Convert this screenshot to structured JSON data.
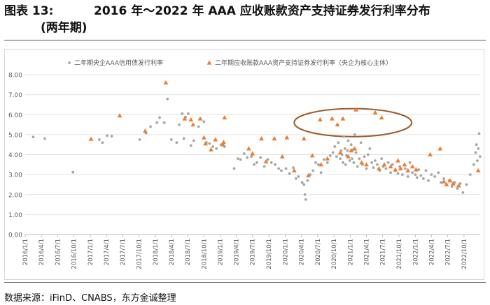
{
  "header": {
    "figure_label": "图表 13:",
    "title_line1": "2016 年～2022 年 AAA 应收账款资产支持证券发行利率分布",
    "title_line2": "(两年期)"
  },
  "footer": {
    "source": "数据来源：iFinD、CNABS，东方金诚整理"
  },
  "chart_data": {
    "type": "scatter",
    "legend_position": "top-center",
    "grid": "horizontal",
    "ylim": [
      0,
      8
    ],
    "yticks": [
      "0.00",
      "1.00",
      "2.00",
      "3.00",
      "4.00",
      "5.00",
      "6.00",
      "7.00",
      "8.00"
    ],
    "xlim": [
      "2016-01-01",
      "2022-12-31"
    ],
    "xticks": [
      "2016/1/1",
      "2016/4/1",
      "2016/7/1",
      "2016/10/1",
      "2017/1/1",
      "2017/4/1",
      "2017/7/1",
      "2017/10/1",
      "2018/1/1",
      "2018/4/1",
      "2018/7/1",
      "2018/10/1",
      "2019/1/1",
      "2019/4/1",
      "2019/7/1",
      "2019/10/1",
      "2020/1/1",
      "2020/4/1",
      "2020/7/1",
      "2020/10/1",
      "2021/1/1",
      "2021/4/1",
      "2021/7/1",
      "2021/10/1",
      "2022/1/1",
      "2022/4/1",
      "2022/7/1",
      "2022/10/1"
    ],
    "annotation": {
      "shape": "ellipse",
      "center": [
        "2021-01-15",
        5.6
      ],
      "radius_days": 330,
      "radius_y": 0.7,
      "color": "#9C5A2A"
    },
    "series": [
      {
        "name": "二年期央企AAA信用债发行利率",
        "marker": "circle",
        "color": "#A6A6A6",
        "points": [
          [
            "2016-02-15",
            4.88
          ],
          [
            "2016-04-20",
            4.8
          ],
          [
            "2016-09-25",
            3.12
          ],
          [
            "2017-02-20",
            4.75
          ],
          [
            "2017-03-10",
            4.6
          ],
          [
            "2017-04-05",
            4.95
          ],
          [
            "2017-05-01",
            4.92
          ],
          [
            "2017-10-05",
            4.75
          ],
          [
            "2017-11-10",
            5.08
          ],
          [
            "2017-12-05",
            5.4
          ],
          [
            "2018-01-10",
            5.6
          ],
          [
            "2018-01-25",
            5.85
          ],
          [
            "2018-02-20",
            5.6
          ],
          [
            "2018-03-10",
            6.78
          ],
          [
            "2018-04-01",
            4.75
          ],
          [
            "2018-05-01",
            4.6
          ],
          [
            "2018-05-15",
            5.5
          ],
          [
            "2018-06-01",
            6.05
          ],
          [
            "2018-06-10",
            4.8
          ],
          [
            "2018-06-20",
            5.88
          ],
          [
            "2018-07-05",
            6.05
          ],
          [
            "2018-07-20",
            4.45
          ],
          [
            "2018-08-05",
            4.7
          ],
          [
            "2018-09-01",
            5.4
          ],
          [
            "2018-10-01",
            5.65
          ],
          [
            "2018-10-15",
            4.6
          ],
          [
            "2018-11-01",
            4.55
          ],
          [
            "2018-11-20",
            4.4
          ],
          [
            "2018-12-10",
            4.3
          ],
          [
            "2019-01-05",
            4.5
          ],
          [
            "2019-01-25",
            4.4
          ],
          [
            "2019-03-20",
            3.3
          ],
          [
            "2019-04-10",
            3.8
          ],
          [
            "2019-04-25",
            3.75
          ],
          [
            "2019-05-15",
            4.05
          ],
          [
            "2019-06-01",
            3.85
          ],
          [
            "2019-06-25",
            3.9
          ],
          [
            "2019-07-10",
            3.5
          ],
          [
            "2019-07-25",
            3.6
          ],
          [
            "2019-08-15",
            3.85
          ],
          [
            "2019-09-05",
            3.4
          ],
          [
            "2019-09-25",
            3.75
          ],
          [
            "2019-10-15",
            3.6
          ],
          [
            "2019-11-05",
            3.5
          ],
          [
            "2019-11-25",
            3.3
          ],
          [
            "2019-12-10",
            3.2
          ],
          [
            "2020-01-05",
            3.3
          ],
          [
            "2020-01-25",
            3.05
          ],
          [
            "2020-02-15",
            3.35
          ],
          [
            "2020-03-01",
            2.8
          ],
          [
            "2020-03-15",
            2.9
          ],
          [
            "2020-04-05",
            2.6
          ],
          [
            "2020-04-15",
            2.5
          ],
          [
            "2020-04-20",
            2.0
          ],
          [
            "2020-04-25",
            1.75
          ],
          [
            "2020-05-05",
            2.7
          ],
          [
            "2020-05-20",
            3.0
          ],
          [
            "2020-06-05",
            3.2
          ],
          [
            "2020-06-20",
            3.6
          ],
          [
            "2020-07-05",
            3.5
          ],
          [
            "2020-07-20",
            3.1
          ],
          [
            "2020-08-05",
            3.75
          ],
          [
            "2020-08-25",
            3.6
          ],
          [
            "2020-09-10",
            3.95
          ],
          [
            "2020-09-25",
            4.1
          ],
          [
            "2020-10-05",
            4.4
          ],
          [
            "2020-10-15",
            3.9
          ],
          [
            "2020-10-25",
            4.6
          ],
          [
            "2020-11-05",
            3.8
          ],
          [
            "2020-11-10",
            4.2
          ],
          [
            "2020-11-15",
            4.0
          ],
          [
            "2020-11-20",
            3.6
          ],
          [
            "2020-11-25",
            4.9
          ],
          [
            "2020-12-01",
            4.3
          ],
          [
            "2020-12-05",
            3.5
          ],
          [
            "2020-12-10",
            3.95
          ],
          [
            "2020-12-15",
            4.2
          ],
          [
            "2020-12-20",
            4.7
          ],
          [
            "2020-12-28",
            3.7
          ],
          [
            "2021-01-05",
            4.5
          ],
          [
            "2021-01-10",
            3.8
          ],
          [
            "2021-01-15",
            4.25
          ],
          [
            "2021-01-20",
            3.6
          ],
          [
            "2021-01-25",
            5.0
          ],
          [
            "2021-02-01",
            4.1
          ],
          [
            "2021-02-10",
            3.4
          ],
          [
            "2021-02-20",
            3.8
          ],
          [
            "2021-03-01",
            4.6
          ],
          [
            "2021-03-10",
            3.5
          ],
          [
            "2021-03-20",
            3.9
          ],
          [
            "2021-04-01",
            3.3
          ],
          [
            "2021-04-10",
            4.0
          ],
          [
            "2021-04-20",
            4.3
          ],
          [
            "2021-05-01",
            3.6
          ],
          [
            "2021-05-10",
            3.35
          ],
          [
            "2021-05-20",
            3.7
          ],
          [
            "2021-06-01",
            3.5
          ],
          [
            "2021-06-15",
            3.2
          ],
          [
            "2021-06-25",
            3.8
          ],
          [
            "2021-07-05",
            3.4
          ],
          [
            "2021-07-20",
            3.3
          ],
          [
            "2021-08-01",
            3.6
          ],
          [
            "2021-08-15",
            3.1
          ],
          [
            "2021-08-25",
            3.5
          ],
          [
            "2021-09-10",
            3.2
          ],
          [
            "2021-09-25",
            3.05
          ],
          [
            "2021-10-05",
            3.4
          ],
          [
            "2021-10-20",
            3.0
          ],
          [
            "2021-11-05",
            3.3
          ],
          [
            "2021-11-20",
            2.9
          ],
          [
            "2021-12-01",
            3.6
          ],
          [
            "2021-12-15",
            3.1
          ],
          [
            "2022-01-01",
            3.0
          ],
          [
            "2022-01-10",
            2.85
          ],
          [
            "2022-01-20",
            3.25
          ],
          [
            "2022-02-01",
            2.95
          ],
          [
            "2022-02-15",
            2.8
          ],
          [
            "2022-03-01",
            3.2
          ],
          [
            "2022-03-15",
            2.7
          ],
          [
            "2022-04-01",
            3.0
          ],
          [
            "2022-04-20",
            2.9
          ],
          [
            "2022-05-10",
            3.1
          ],
          [
            "2022-05-25",
            2.6
          ],
          [
            "2022-06-10",
            2.8
          ],
          [
            "2022-06-25",
            2.5
          ],
          [
            "2022-07-10",
            2.7
          ],
          [
            "2022-07-25",
            2.4
          ],
          [
            "2022-08-10",
            2.6
          ],
          [
            "2022-08-25",
            2.3
          ],
          [
            "2022-09-10",
            2.55
          ],
          [
            "2022-09-25",
            2.1
          ],
          [
            "2022-10-15",
            2.5
          ],
          [
            "2022-11-05",
            3.0
          ],
          [
            "2022-11-25",
            3.5
          ],
          [
            "2022-12-05",
            4.1
          ],
          [
            "2022-12-10",
            4.5
          ],
          [
            "2022-12-15",
            3.7
          ],
          [
            "2022-12-20",
            4.3
          ],
          [
            "2022-12-25",
            5.05
          ],
          [
            "2022-12-30",
            3.9
          ]
        ]
      },
      {
        "name": "二年期应收账款AAA资产支持证券发行利率（央企为核心主体）",
        "marker": "triangle",
        "color": "#ED7D31",
        "points": [
          [
            "2017-01-05",
            4.78
          ],
          [
            "2017-06-15",
            5.95
          ],
          [
            "2017-11-05",
            5.18
          ],
          [
            "2018-03-01",
            7.6
          ],
          [
            "2018-06-15",
            5.8
          ],
          [
            "2018-07-20",
            5.75
          ],
          [
            "2018-08-01",
            5.5
          ],
          [
            "2018-09-10",
            5.8
          ],
          [
            "2018-10-01",
            4.85
          ],
          [
            "2018-10-10",
            4.55
          ],
          [
            "2018-11-10",
            4.25
          ],
          [
            "2018-12-05",
            4.75
          ],
          [
            "2019-01-15",
            4.5
          ],
          [
            "2019-01-20",
            4.62
          ],
          [
            "2019-01-25",
            5.85
          ],
          [
            "2019-06-10",
            4.3
          ],
          [
            "2019-07-01",
            4.05
          ],
          [
            "2019-08-20",
            4.8
          ],
          [
            "2019-09-15",
            3.65
          ],
          [
            "2019-11-01",
            4.8
          ],
          [
            "2019-12-15",
            3.9
          ],
          [
            "2020-01-10",
            4.85
          ],
          [
            "2020-02-20",
            3.2
          ],
          [
            "2020-04-15",
            4.8
          ],
          [
            "2020-05-10",
            2.95
          ],
          [
            "2020-06-01",
            3.95
          ],
          [
            "2020-07-15",
            5.75
          ],
          [
            "2020-07-20",
            3.5
          ],
          [
            "2020-08-25",
            3.8
          ],
          [
            "2020-09-20",
            5.8
          ],
          [
            "2020-10-20",
            5.5
          ],
          [
            "2020-11-05",
            4.1
          ],
          [
            "2020-11-20",
            5.8
          ],
          [
            "2020-12-20",
            3.9
          ],
          [
            "2021-01-05",
            4.2
          ],
          [
            "2021-01-25",
            4.3
          ],
          [
            "2021-02-01",
            6.25
          ],
          [
            "2021-03-05",
            3.6
          ],
          [
            "2021-04-01",
            3.5
          ],
          [
            "2021-05-20",
            6.1
          ],
          [
            "2021-06-10",
            3.3
          ],
          [
            "2021-06-25",
            5.85
          ],
          [
            "2021-07-10",
            3.5
          ],
          [
            "2021-08-15",
            3.4
          ],
          [
            "2021-09-10",
            3.25
          ],
          [
            "2021-09-25",
            3.7
          ],
          [
            "2021-10-10",
            3.3
          ],
          [
            "2021-11-01",
            3.5
          ],
          [
            "2021-11-20",
            3.2
          ],
          [
            "2021-12-15",
            3.4
          ],
          [
            "2022-01-05",
            3.25
          ],
          [
            "2022-03-25",
            4.0
          ],
          [
            "2022-05-20",
            4.3
          ],
          [
            "2022-06-10",
            2.65
          ],
          [
            "2022-06-25",
            2.5
          ],
          [
            "2022-07-15",
            2.7
          ],
          [
            "2022-08-01",
            2.55
          ],
          [
            "2022-09-01",
            2.45
          ],
          [
            "2022-12-20",
            3.2
          ]
        ]
      }
    ]
  }
}
